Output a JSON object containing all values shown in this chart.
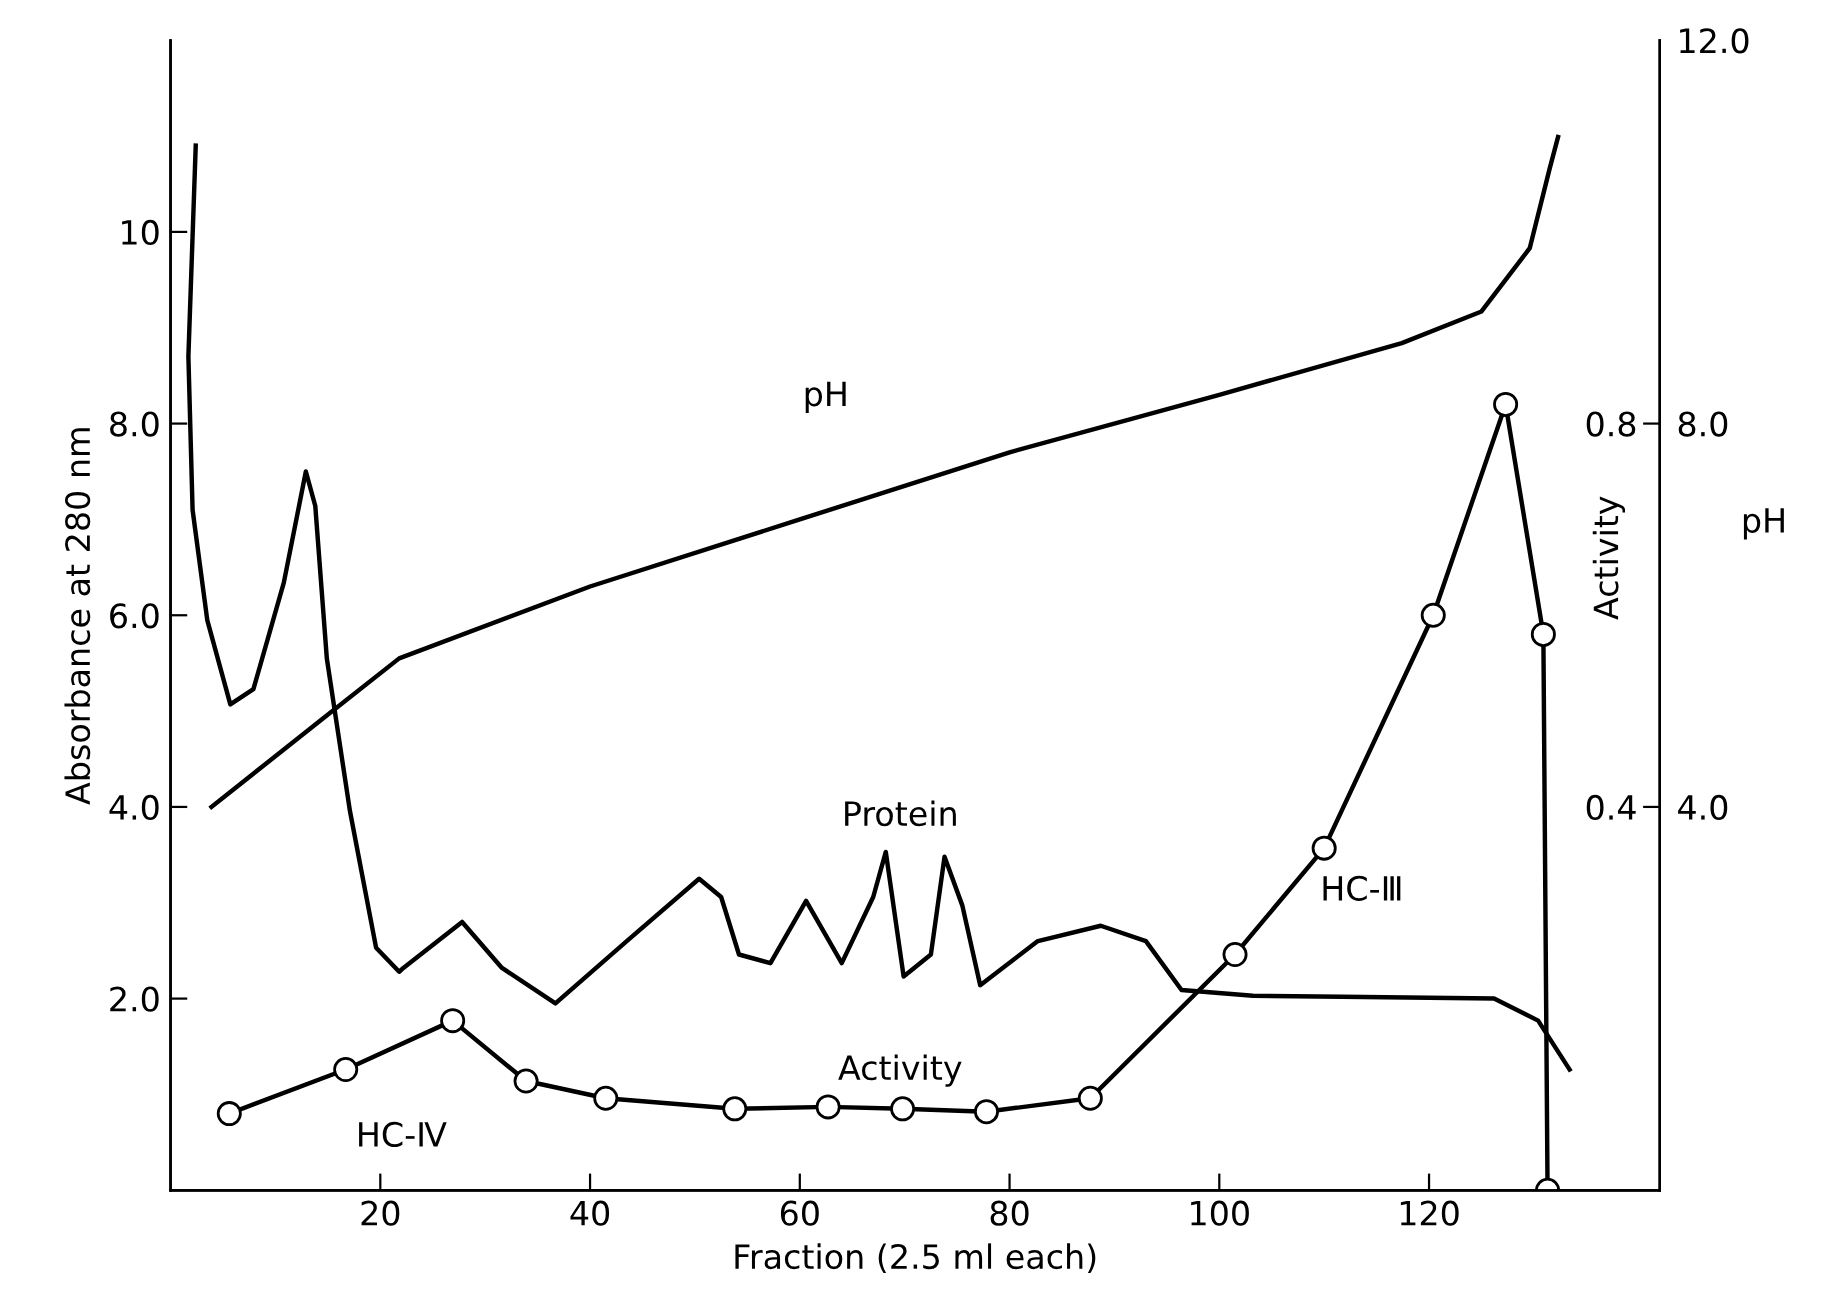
{
  "chart_data": {
    "type": "line",
    "xlabel": "Fraction (2.5 ml each)",
    "ylabel": "Absorbance at 280 nm",
    "y2label": "Activity",
    "y3label": "pH",
    "xlim": [
      0,
      142
    ],
    "xticks": [
      20,
      40,
      60,
      80,
      100,
      120
    ],
    "ylim": [
      0,
      12
    ],
    "yticks": [
      {
        "value": 2,
        "label": "2.0"
      },
      {
        "value": 4,
        "label": "4.0"
      },
      {
        "value": 6,
        "label": "6.0"
      },
      {
        "value": 8,
        "label": "8.0"
      },
      10
    ],
    "y2lim": [
      0,
      1.2
    ],
    "y2ticks": [
      0.4,
      0.8
    ],
    "y3lim": [
      0,
      12
    ],
    "y3ticks": [
      {
        "value": 4,
        "label": "4.0"
      },
      {
        "value": 8,
        "label": "8.0"
      },
      {
        "value": 12,
        "label": "12.0"
      }
    ],
    "grid": false,
    "legend": false,
    "series": [
      {
        "name": "Protein",
        "color": "#000000",
        "marker": "none",
        "x": [
          2.4,
          1.7,
          2.1,
          3.5,
          5.7,
          7.9,
          10.8,
          12.9,
          13.8,
          14.9,
          17.1,
          19.6,
          21.8,
          22.2,
          27.8,
          31.6,
          36.7,
          43.5,
          50.4,
          52.5,
          54.2,
          57.2,
          60.6,
          64.0,
          67.0,
          68.2,
          69.9,
          72.5,
          73.8,
          75.5,
          77.2,
          82.7,
          88.7,
          93.0,
          96.4,
          103.2,
          111.7,
          126.2,
          130.4,
          133.4
        ],
        "values": [
          10.9,
          8.7,
          7.1,
          5.95,
          5.07,
          5.23,
          6.34,
          7.5,
          7.14,
          5.55,
          3.96,
          2.53,
          2.28,
          2.32,
          2.8,
          2.32,
          1.95,
          2.6,
          3.25,
          3.06,
          2.46,
          2.37,
          3.02,
          2.37,
          3.06,
          3.53,
          2.23,
          2.46,
          3.48,
          2.97,
          2.14,
          2.6,
          2.76,
          2.6,
          2.09,
          2.03,
          2.02,
          2.0,
          1.77,
          1.26
        ]
      },
      {
        "name": "pH",
        "color": "#000000",
        "marker": "none",
        "axis": "y3",
        "x": [
          3.9,
          14.5,
          21.8,
          40,
          60,
          80,
          100,
          117.4,
          125.0,
          129.6,
          131.5,
          132.3
        ],
        "values": [
          4.0,
          4.92,
          5.55,
          6.3,
          7.0,
          7.7,
          8.3,
          8.84,
          9.17,
          9.83,
          10.66,
          10.99
        ]
      },
      {
        "name": "Activity",
        "color": "#000000",
        "marker": "circle",
        "axis": "y2",
        "x": [
          5.6,
          16.7,
          26.9,
          33.9,
          41.5,
          53.8,
          62.7,
          69.8,
          77.8,
          87.7,
          101.5,
          110.0,
          120.4,
          127.3,
          130.9,
          131.3
        ],
        "values": [
          0.08,
          0.126,
          0.177,
          0.114,
          0.096,
          0.085,
          0.087,
          0.085,
          0.082,
          0.096,
          0.246,
          0.357,
          0.6,
          0.82,
          0.58,
          0.0
        ]
      }
    ],
    "annotations": [
      "HC-Ⅳ",
      "HC-Ⅲ"
    ]
  }
}
